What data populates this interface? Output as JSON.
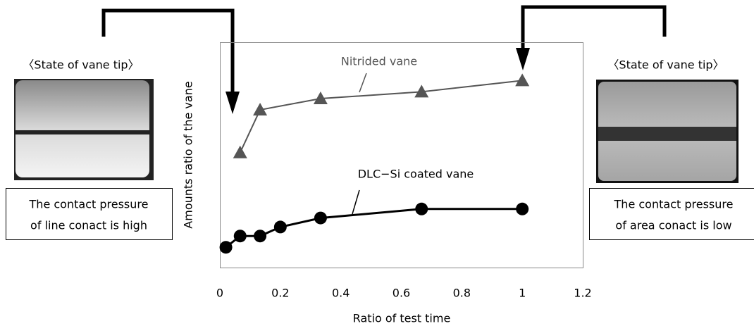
{
  "chart_data": {
    "type": "line",
    "x_label": "Ratio of test time",
    "y_label": "Amounts ratio of the vane",
    "xlim": [
      0,
      1.2
    ],
    "xticks": [
      0,
      0.2,
      0.4,
      0.6,
      0.8,
      1,
      1.2
    ],
    "ylim": [
      0,
      1
    ],
    "series": [
      {
        "name": "Nitrided vane",
        "color": "#555555",
        "marker": "triangle",
        "x": [
          0.067,
          0.133,
          0.333,
          0.667,
          1
        ],
        "values": [
          0.51,
          0.7,
          0.75,
          0.78,
          0.83
        ]
      },
      {
        "name": "DLC−Si coated vane",
        "color": "#000000",
        "marker": "circle",
        "x": [
          0.02,
          0.067,
          0.133,
          0.2,
          0.333,
          0.667,
          1
        ],
        "values": [
          0.09,
          0.14,
          0.14,
          0.18,
          0.22,
          0.26,
          0.26
        ]
      }
    ]
  },
  "panels": [
    {
      "heading": "〈State of vane tip〉",
      "caption": [
        "The contact pressure",
        "of line conact is high"
      ]
    },
    {
      "heading": "〈State of vane tip〉",
      "caption": [
        "The contact pressure",
        "of area conact is low"
      ]
    }
  ]
}
